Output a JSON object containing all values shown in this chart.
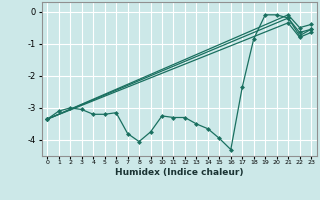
{
  "xlabel": "Humidex (Indice chaleur)",
  "background_color": "#cce8e8",
  "grid_color": "#ffffff",
  "line_color": "#1a7060",
  "xlim": [
    -0.5,
    23.5
  ],
  "ylim": [
    -4.5,
    0.3
  ],
  "yticks": [
    0,
    -1,
    -2,
    -3,
    -4
  ],
  "xticks": [
    0,
    1,
    2,
    3,
    4,
    5,
    6,
    7,
    8,
    9,
    10,
    11,
    12,
    13,
    14,
    15,
    16,
    17,
    18,
    19,
    20,
    21,
    22,
    23
  ],
  "line1_x": [
    0,
    1,
    2,
    3,
    4,
    5,
    6,
    7,
    8,
    9,
    10,
    11,
    12,
    13,
    14,
    15,
    16,
    17,
    18,
    19,
    20,
    21,
    22,
    23
  ],
  "line1_y": [
    -3.35,
    -3.1,
    -3.0,
    -3.05,
    -3.2,
    -3.2,
    -3.15,
    -3.8,
    -4.05,
    -3.75,
    -3.25,
    -3.3,
    -3.3,
    -3.5,
    -3.65,
    -3.95,
    -4.3,
    -2.35,
    -0.85,
    -0.1,
    -0.1,
    -0.2,
    -0.75,
    -0.55
  ],
  "line2_x": [
    0,
    21,
    22,
    23
  ],
  "line2_y": [
    -3.35,
    -0.1,
    -0.5,
    -0.4
  ],
  "line3_x": [
    0,
    21,
    22,
    23
  ],
  "line3_y": [
    -3.35,
    -0.2,
    -0.65,
    -0.55
  ],
  "line4_x": [
    0,
    21,
    22,
    23
  ],
  "line4_y": [
    -3.35,
    -0.35,
    -0.8,
    -0.65
  ]
}
